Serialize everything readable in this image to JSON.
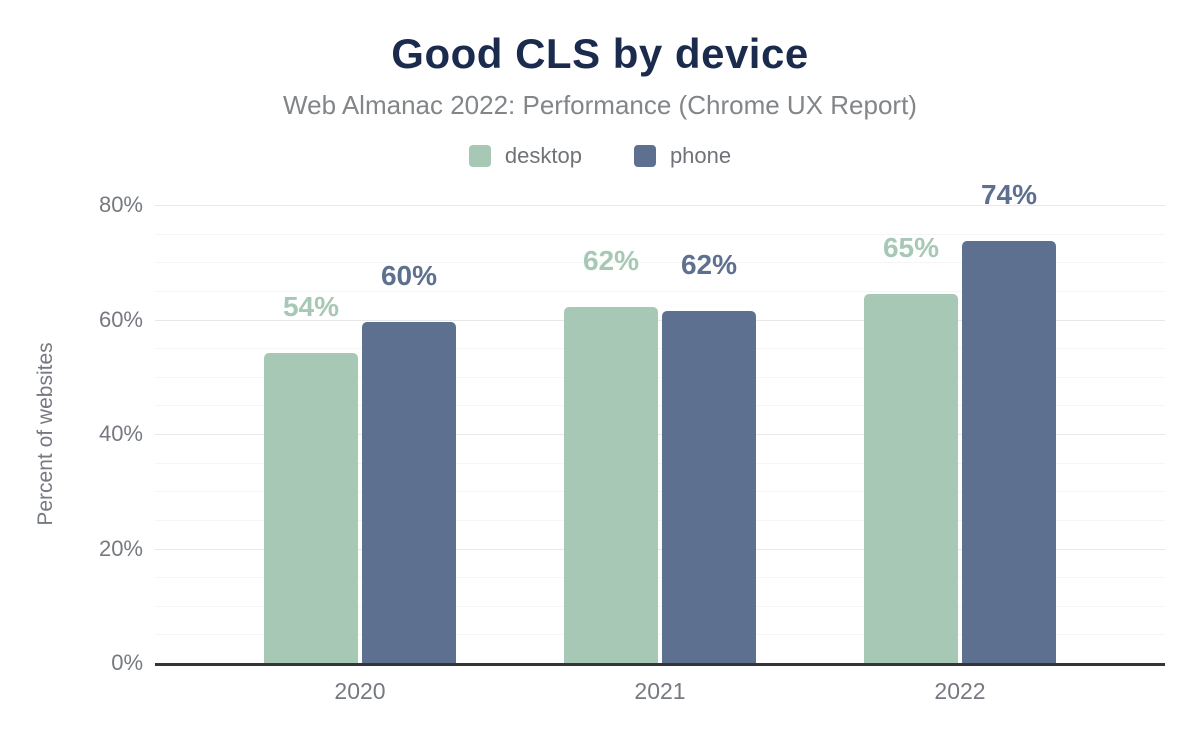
{
  "chart_data": {
    "type": "bar",
    "title": "Good CLS by device",
    "subtitle": "Web Almanac 2022: Performance (Chrome UX Report)",
    "ylabel": "Percent of websites",
    "xlabel": "",
    "categories": [
      "2020",
      "2021",
      "2022"
    ],
    "series": [
      {
        "name": "desktop",
        "color": "#a6c8b4",
        "values": [
          54,
          62,
          65
        ],
        "labels": [
          "54%",
          "62%",
          "65%"
        ],
        "bar_heights_pct": [
          54.2,
          62.2,
          64.5
        ]
      },
      {
        "name": "phone",
        "color": "#5d7090",
        "values": [
          60,
          62,
          74
        ],
        "labels": [
          "60%",
          "62%",
          "74%"
        ],
        "bar_heights_pct": [
          59.5,
          61.5,
          73.7
        ]
      }
    ],
    "ylim": [
      0,
      80
    ],
    "yticks": [
      0,
      20,
      40,
      60,
      80
    ],
    "ytick_labels": [
      "0%",
      "20%",
      "40%",
      "60%",
      "80%"
    ],
    "minor_grid_step": 5,
    "grid": "horizontal",
    "legend_position": "top",
    "value_labels_shown": true
  },
  "colors": {
    "background": "#ffffff",
    "title_text": "#1b2b4d",
    "subtitle_text": "#828689",
    "axis_text": "#767a80",
    "legend_text": "#6f7377",
    "gridline_major": "#e8e8e8",
    "gridline_minor": "#f5f5f5",
    "axis_baseline": "#333538",
    "desktop_series": "#a6c8b4",
    "phone_series": "#5d7090"
  }
}
